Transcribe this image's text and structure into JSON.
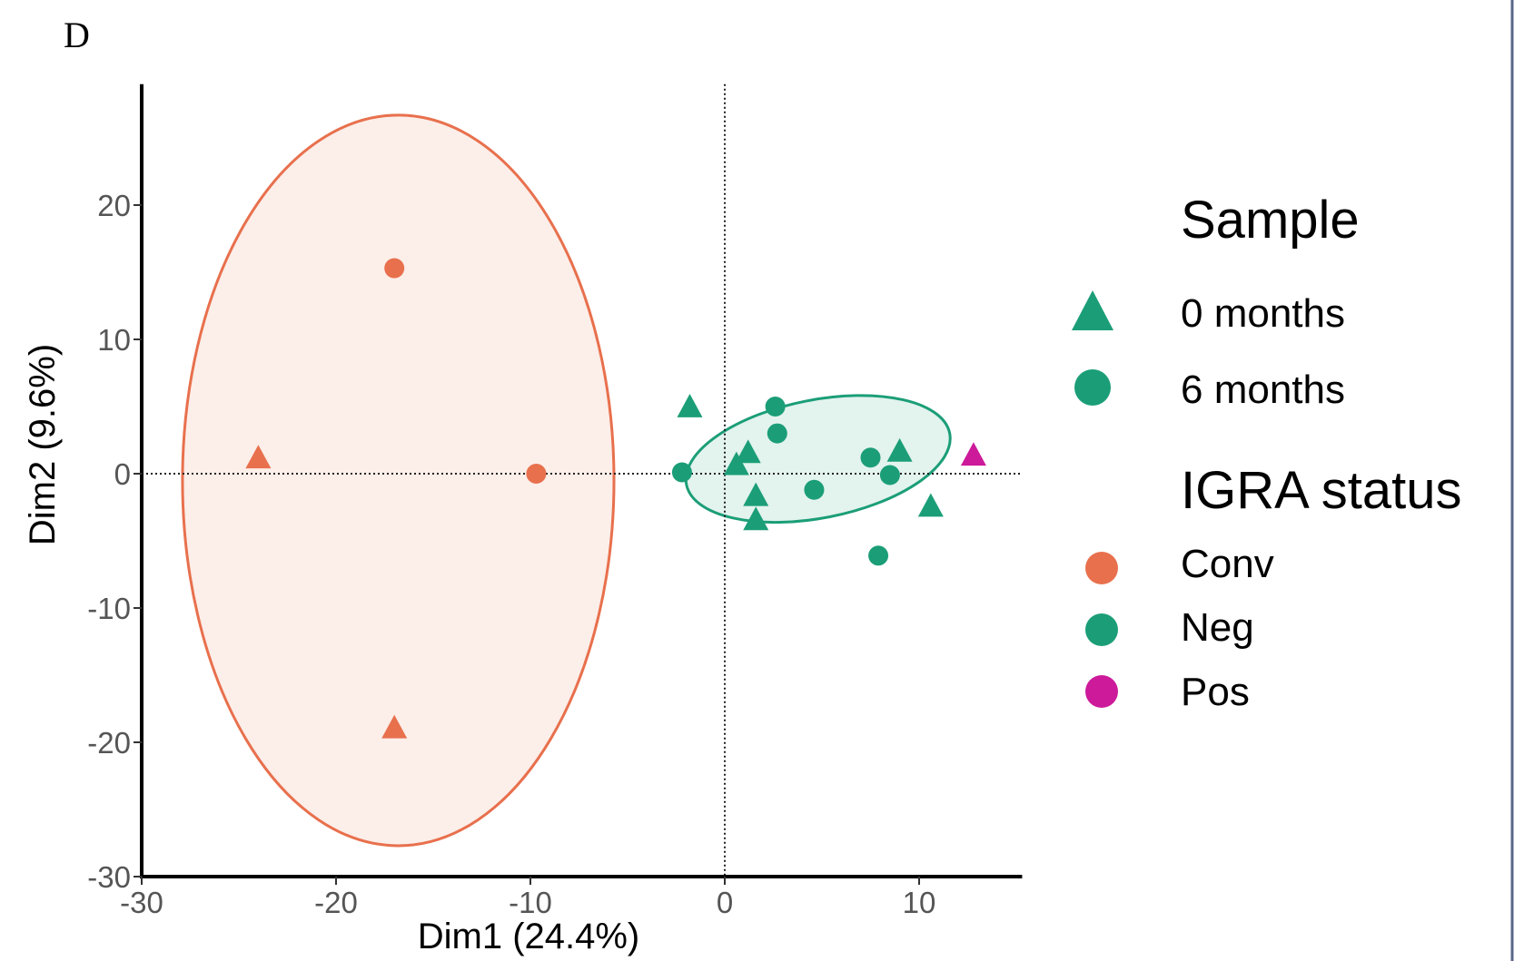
{
  "panel_label": "D",
  "chart_data": {
    "type": "scatter",
    "xlabel": "Dim1 (24.4%)",
    "ylabel": "Dim2 (9.6%)",
    "xlim": [
      -30,
      15
    ],
    "ylim": [
      -30,
      29
    ],
    "xticks": [
      -30,
      -20,
      -10,
      0,
      10
    ],
    "yticks": [
      -30,
      -20,
      -10,
      0,
      10,
      20
    ],
    "xtick_labels": [
      "-30",
      "-20",
      "-10",
      "0",
      "10"
    ],
    "ytick_labels": [
      "-30",
      "-20",
      "-10",
      "0",
      "10",
      "20"
    ],
    "reference_lines": {
      "x": 0,
      "y": 0,
      "style": "dotted"
    },
    "grid": false,
    "colors": {
      "Conv": "#e8704d",
      "Neg": "#1b9e77",
      "Pos": "#cc1a9a"
    },
    "points": [
      {
        "x": -17.0,
        "y": 15.3,
        "shape": "circle",
        "status": "Conv"
      },
      {
        "x": -9.7,
        "y": 0.0,
        "shape": "circle",
        "status": "Conv"
      },
      {
        "x": -24.0,
        "y": 1.2,
        "shape": "triangle",
        "status": "Conv"
      },
      {
        "x": -17.0,
        "y": -18.9,
        "shape": "triangle",
        "status": "Conv"
      },
      {
        "x": -1.8,
        "y": 5.0,
        "shape": "triangle",
        "status": "Neg"
      },
      {
        "x": -2.2,
        "y": 0.1,
        "shape": "circle",
        "status": "Neg"
      },
      {
        "x": 0.6,
        "y": 0.7,
        "shape": "triangle",
        "status": "Neg"
      },
      {
        "x": 1.2,
        "y": 1.6,
        "shape": "triangle",
        "status": "Neg"
      },
      {
        "x": 2.6,
        "y": 5.0,
        "shape": "circle",
        "status": "Neg"
      },
      {
        "x": 2.7,
        "y": 3.0,
        "shape": "circle",
        "status": "Neg"
      },
      {
        "x": 1.6,
        "y": -1.6,
        "shape": "triangle",
        "status": "Neg"
      },
      {
        "x": 1.6,
        "y": -3.4,
        "shape": "triangle",
        "status": "Neg"
      },
      {
        "x": 4.6,
        "y": -1.2,
        "shape": "circle",
        "status": "Neg"
      },
      {
        "x": 7.5,
        "y": 1.2,
        "shape": "circle",
        "status": "Neg"
      },
      {
        "x": 8.5,
        "y": -0.1,
        "shape": "circle",
        "status": "Neg"
      },
      {
        "x": 9.0,
        "y": 1.7,
        "shape": "triangle",
        "status": "Neg"
      },
      {
        "x": 10.6,
        "y": -2.4,
        "shape": "triangle",
        "status": "Neg"
      },
      {
        "x": 7.9,
        "y": -6.1,
        "shape": "circle",
        "status": "Neg"
      },
      {
        "x": 12.8,
        "y": 1.4,
        "shape": "triangle",
        "status": "Pos"
      }
    ],
    "ellipses": [
      {
        "status": "Conv",
        "cx": -16.8,
        "cy": -0.5,
        "rx": 11.1,
        "ry": 27.2,
        "angle": 0,
        "fill_opacity": 0.12
      },
      {
        "status": "Neg",
        "cx": 4.8,
        "cy": 1.1,
        "rx": 6.9,
        "ry": 4.4,
        "angle": -11,
        "fill_opacity": 0.12
      }
    ],
    "legend": {
      "placement": "right",
      "sample_title": "Sample",
      "sample_items": [
        {
          "label": "0 months",
          "shape": "triangle"
        },
        {
          "label": "6 months",
          "shape": "circle"
        }
      ],
      "status_title": "IGRA status",
      "status_items": [
        {
          "label": "Conv",
          "key": "Conv"
        },
        {
          "label": "Neg",
          "key": "Neg"
        },
        {
          "label": "Pos",
          "key": "Pos"
        }
      ]
    }
  }
}
